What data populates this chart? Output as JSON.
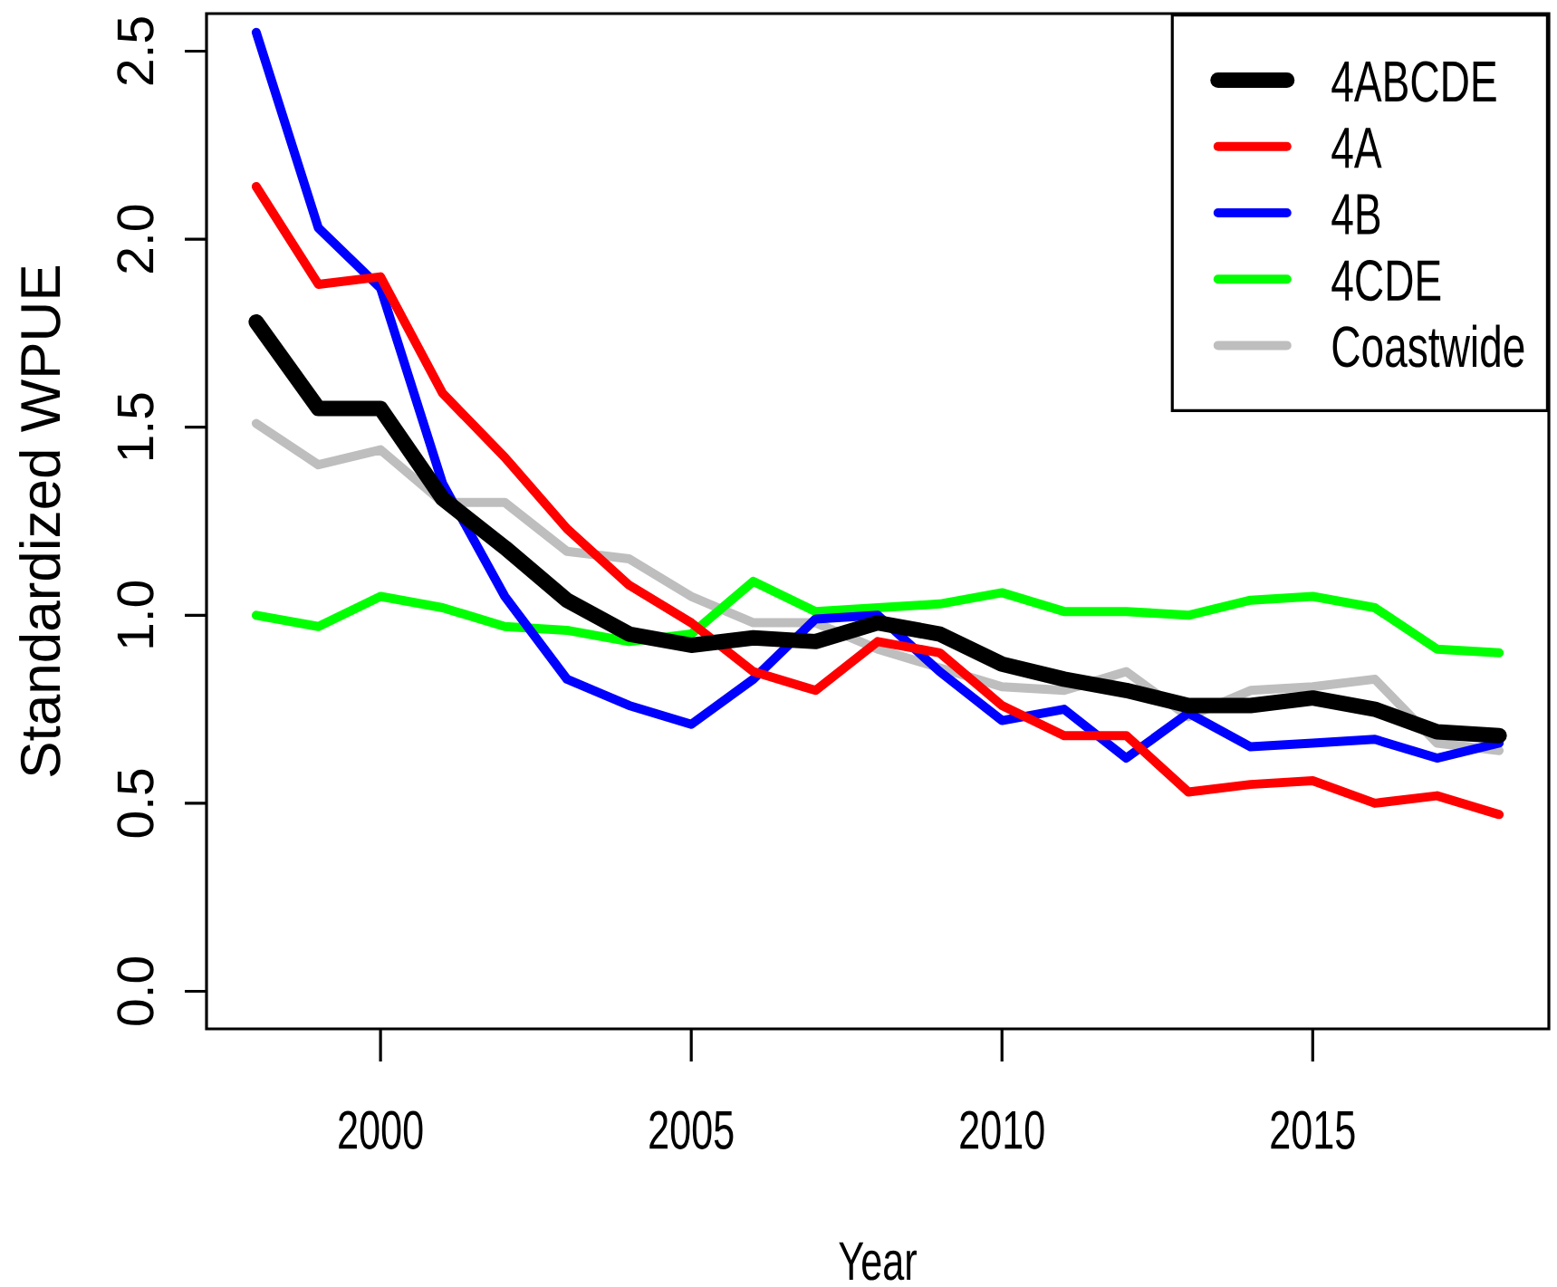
{
  "chart_data": {
    "type": "line",
    "xlabel": "Year",
    "ylabel": "Standardized WPUE",
    "x": [
      1998,
      1999,
      2000,
      2001,
      2002,
      2003,
      2004,
      2005,
      2006,
      2007,
      2008,
      2009,
      2010,
      2011,
      2012,
      2013,
      2014,
      2015,
      2016,
      2017,
      2018
    ],
    "series": [
      {
        "name": "4ABCDE",
        "color": "#000000",
        "values": [
          1.78,
          1.55,
          1.55,
          1.31,
          1.18,
          1.04,
          0.95,
          0.92,
          0.94,
          0.93,
          0.98,
          0.95,
          0.87,
          0.83,
          0.8,
          0.76,
          0.76,
          0.78,
          0.75,
          0.69,
          0.68
        ]
      },
      {
        "name": "4A",
        "color": "#ff0000",
        "values": [
          2.14,
          1.88,
          1.9,
          1.59,
          1.42,
          1.23,
          1.08,
          0.98,
          0.85,
          0.8,
          0.93,
          0.9,
          0.76,
          0.68,
          0.68,
          0.53,
          0.55,
          0.56,
          0.5,
          0.52,
          0.47
        ]
      },
      {
        "name": "4B",
        "color": "#0000ff",
        "values": [
          2.55,
          2.03,
          1.87,
          1.35,
          1.05,
          0.83,
          0.76,
          0.71,
          0.83,
          0.99,
          1.0,
          0.85,
          0.72,
          0.75,
          0.62,
          0.74,
          0.65,
          0.66,
          0.67,
          0.62,
          0.66
        ]
      },
      {
        "name": "4CDE",
        "color": "#00ff00",
        "values": [
          1.0,
          0.97,
          1.05,
          1.02,
          0.97,
          0.96,
          0.93,
          0.95,
          1.09,
          1.01,
          1.02,
          1.03,
          1.06,
          1.01,
          1.01,
          1.0,
          1.04,
          1.05,
          1.02,
          0.91,
          0.9
        ]
      },
      {
        "name": "Coastwide",
        "color": "#bebebe",
        "values": [
          1.51,
          1.4,
          1.44,
          1.3,
          1.3,
          1.17,
          1.15,
          1.05,
          0.98,
          0.98,
          0.91,
          0.86,
          0.81,
          0.8,
          0.85,
          0.73,
          0.8,
          0.81,
          0.83,
          0.66,
          0.64
        ]
      }
    ],
    "xlim": [
      1997.2,
      2018.8
    ],
    "ylim": [
      -0.1,
      2.6
    ],
    "xticks": [
      2000,
      2005,
      2010,
      2015
    ],
    "yticks": [
      {
        "value": 0,
        "label": "0.0"
      },
      {
        "value": 0.5,
        "label": "0.5"
      },
      {
        "value": 1,
        "label": "1.0"
      },
      {
        "value": 1.5,
        "label": "1.5"
      },
      {
        "value": 2,
        "label": "2.0"
      },
      {
        "value": 2.5,
        "label": "2.5"
      }
    ],
    "legend": "top right",
    "line_style": "solid"
  }
}
